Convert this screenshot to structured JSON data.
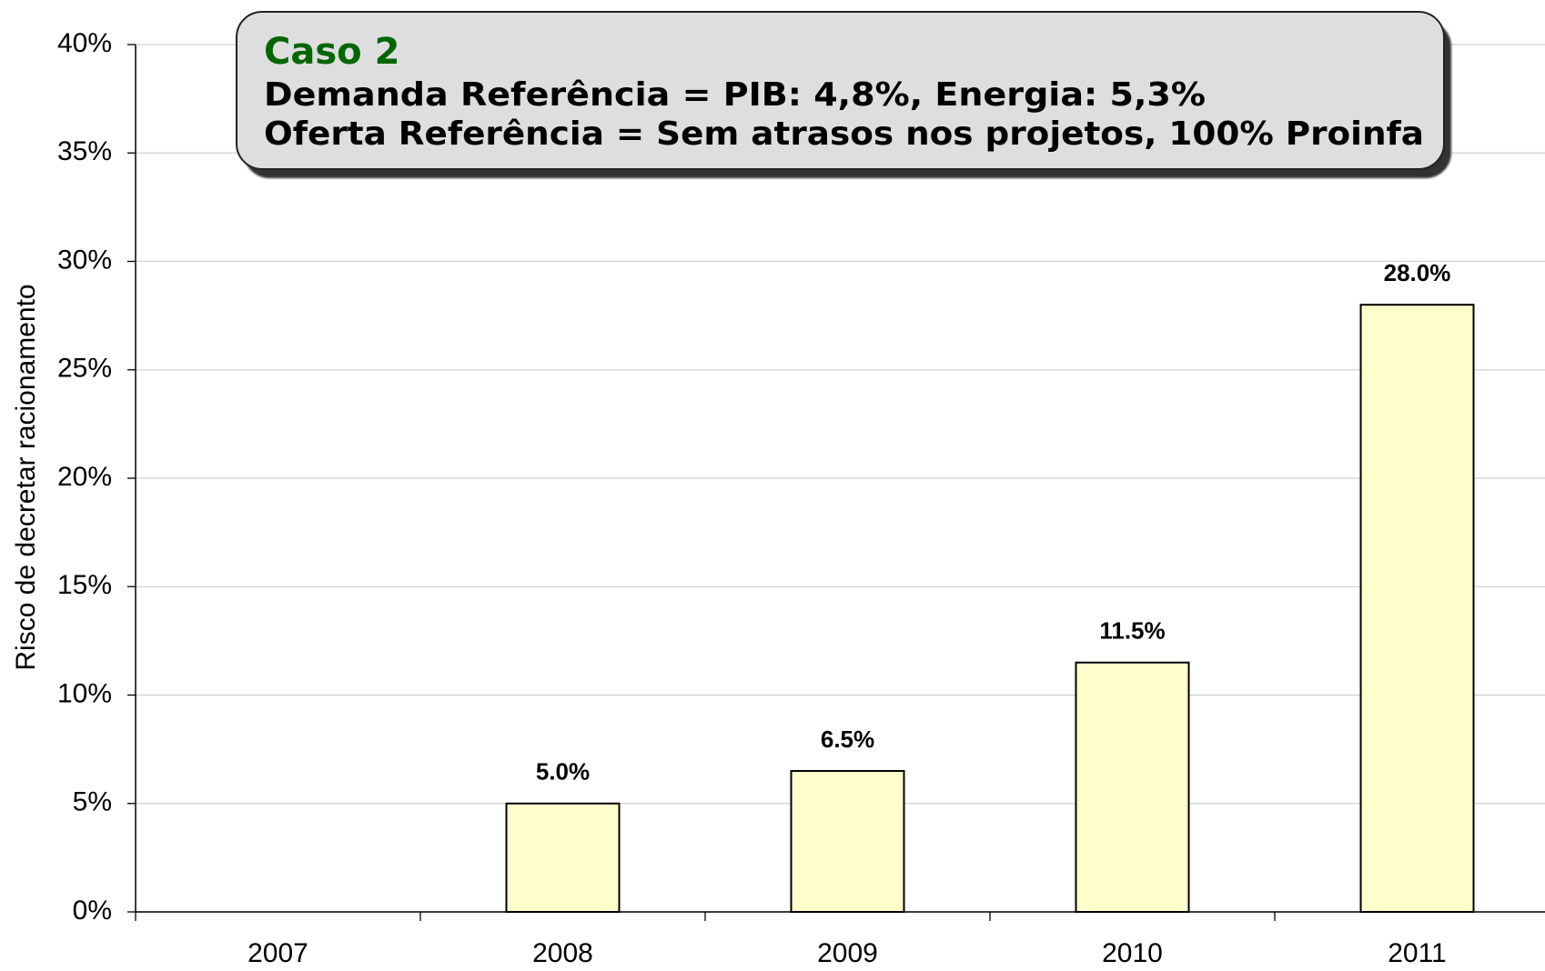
{
  "chart_data": {
    "type": "bar",
    "y_label": "Risco de decretar racionamento",
    "annotation": {
      "title": "Caso 2",
      "lines": [
        "Demanda Referência = PIB: 4,8%, Energia: 5,3%",
        "Oferta Referência = Sem atrasos nos projetos, 100% Proinfa"
      ]
    },
    "categories": [
      "2007",
      "2008",
      "2009",
      "2010",
      "2011"
    ],
    "values": [
      null,
      5.0,
      6.5,
      11.5,
      28.0
    ],
    "value_labels": [
      null,
      "5.0%",
      "6.5%",
      "11.5%",
      "28.0%"
    ],
    "color": "#ffffcc",
    "ylim": [
      0,
      40
    ],
    "yticks": [
      {
        "value": 0,
        "label": "0%"
      },
      {
        "value": 5,
        "label": "5%"
      },
      {
        "value": 10,
        "label": "10%"
      },
      {
        "value": 15,
        "label": "15%"
      },
      {
        "value": 20,
        "label": "20%"
      },
      {
        "value": 25,
        "label": "25%"
      },
      {
        "value": 30,
        "label": "30%"
      },
      {
        "value": 35,
        "label": "35%"
      },
      {
        "value": 40,
        "label": "40%"
      }
    ],
    "grid": true
  }
}
